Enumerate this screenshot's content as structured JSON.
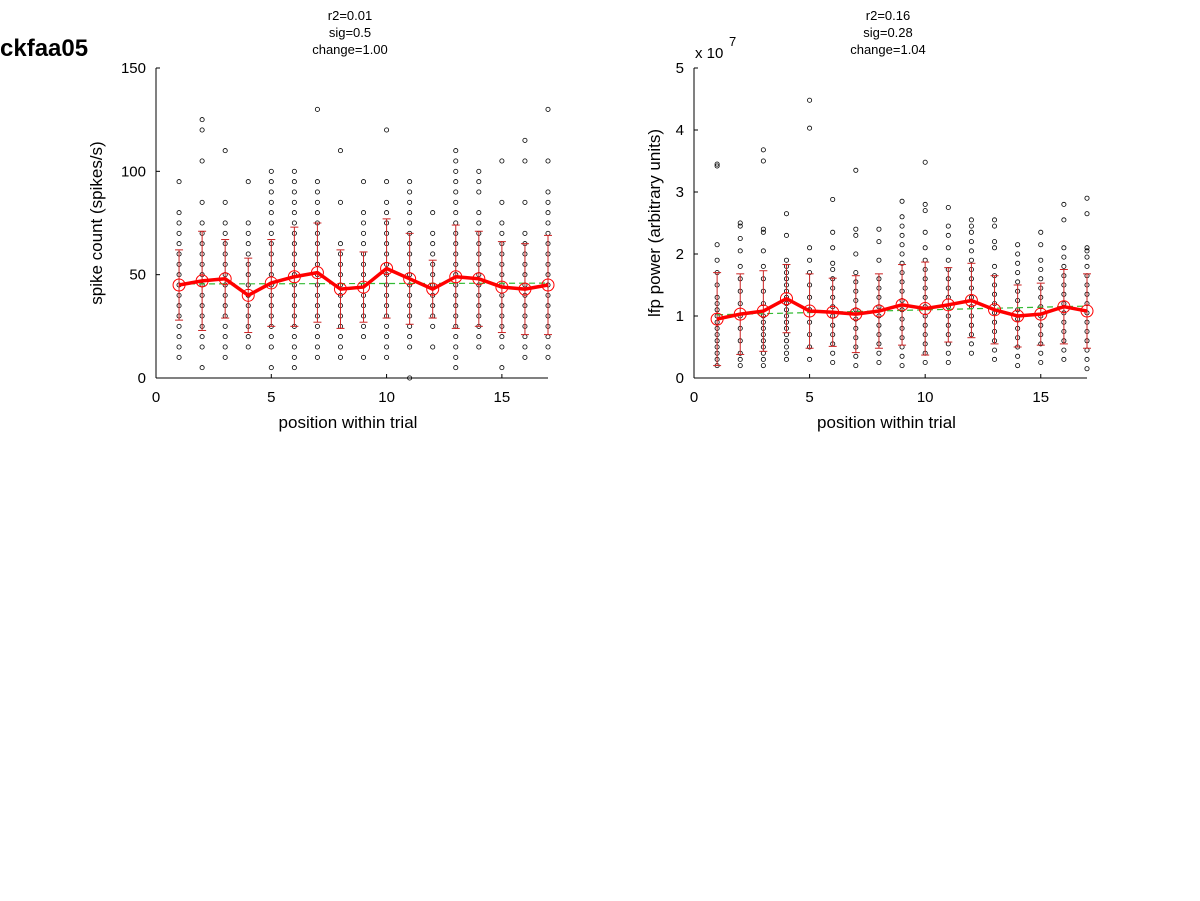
{
  "figure": {
    "title": "ckfaa05"
  },
  "colors": {
    "scatter": "#000000",
    "errorbar": "#cc2222",
    "mean_line": "#ff0000",
    "trend": "#33bb33"
  },
  "chart_data": [
    {
      "type": "scatter",
      "annotation": [
        "r2=0.01",
        "sig=0.5",
        "change=1.00"
      ],
      "xlabel": "position within trial",
      "ylabel": "spike count (spikes/s)",
      "xlim": [
        0,
        17
      ],
      "ylim": [
        0,
        150
      ],
      "xticks": [
        0,
        5,
        10,
        15
      ],
      "yticks": [
        0,
        50,
        100,
        150
      ],
      "exponent_label": "",
      "x": [
        1,
        2,
        3,
        4,
        5,
        6,
        7,
        8,
        9,
        10,
        11,
        12,
        13,
        14,
        15,
        16,
        17
      ],
      "mean": [
        45,
        47,
        48,
        40,
        46,
        49,
        51,
        43,
        44,
        53,
        48,
        43,
        49,
        48,
        44,
        43,
        45
      ],
      "std": [
        17,
        24,
        19,
        18,
        21,
        24,
        24,
        19,
        17,
        24,
        22,
        14,
        25,
        23,
        22,
        22,
        24
      ],
      "trend": [
        45.5,
        45.9
      ],
      "points": [
        [
          10,
          15,
          20,
          25,
          30,
          35,
          40,
          45,
          50,
          55,
          60,
          65,
          70,
          75,
          80,
          95
        ],
        [
          5,
          15,
          20,
          25,
          30,
          35,
          40,
          45,
          50,
          55,
          60,
          65,
          70,
          75,
          85,
          105,
          120,
          125
        ],
        [
          10,
          15,
          20,
          25,
          30,
          35,
          40,
          45,
          50,
          55,
          60,
          65,
          70,
          75,
          85,
          110
        ],
        [
          15,
          20,
          25,
          30,
          35,
          40,
          45,
          50,
          55,
          60,
          65,
          70,
          75,
          95
        ],
        [
          5,
          15,
          20,
          25,
          30,
          35,
          40,
          45,
          50,
          55,
          60,
          65,
          70,
          75,
          80,
          85,
          90,
          95,
          100
        ],
        [
          5,
          10,
          15,
          20,
          25,
          30,
          35,
          40,
          45,
          50,
          55,
          60,
          65,
          70,
          75,
          80,
          85,
          90,
          95,
          100
        ],
        [
          10,
          15,
          20,
          25,
          30,
          35,
          40,
          45,
          50,
          55,
          60,
          65,
          70,
          75,
          80,
          85,
          90,
          95,
          130
        ],
        [
          10,
          15,
          20,
          25,
          30,
          35,
          40,
          45,
          50,
          55,
          60,
          65,
          85,
          110
        ],
        [
          10,
          20,
          25,
          30,
          35,
          40,
          45,
          50,
          55,
          60,
          65,
          70,
          75,
          80,
          95
        ],
        [
          10,
          15,
          20,
          25,
          30,
          35,
          40,
          45,
          50,
          55,
          60,
          65,
          70,
          75,
          80,
          85,
          95,
          120
        ],
        [
          0,
          15,
          20,
          25,
          30,
          35,
          40,
          45,
          50,
          55,
          60,
          65,
          70,
          75,
          80,
          85,
          90,
          95
        ],
        [
          15,
          25,
          30,
          35,
          40,
          45,
          50,
          55,
          60,
          65,
          70,
          80
        ],
        [
          5,
          10,
          15,
          20,
          25,
          30,
          35,
          40,
          45,
          50,
          55,
          60,
          65,
          70,
          75,
          80,
          85,
          90,
          95,
          100,
          105,
          110
        ],
        [
          15,
          20,
          25,
          30,
          35,
          40,
          45,
          50,
          55,
          60,
          65,
          70,
          75,
          80,
          90,
          95,
          100
        ],
        [
          5,
          15,
          20,
          25,
          30,
          35,
          40,
          45,
          50,
          55,
          60,
          65,
          70,
          75,
          85,
          105
        ],
        [
          10,
          15,
          20,
          25,
          30,
          35,
          40,
          45,
          50,
          55,
          60,
          65,
          70,
          85,
          105,
          115
        ],
        [
          10,
          15,
          20,
          25,
          30,
          35,
          40,
          45,
          50,
          55,
          60,
          65,
          70,
          75,
          80,
          85,
          90,
          105,
          130
        ]
      ]
    },
    {
      "type": "scatter",
      "annotation": [
        "r2=0.16",
        "sig=0.28",
        "change=1.04"
      ],
      "xlabel": "position within trial",
      "ylabel": "lfp power (arbitrary units)",
      "xlim": [
        0,
        17
      ],
      "ylim": [
        0,
        5
      ],
      "xticks": [
        0,
        5,
        10,
        15
      ],
      "yticks": [
        0,
        1,
        2,
        3,
        4,
        5
      ],
      "exponent_label": "x 10",
      "exponent_power": "7",
      "x": [
        1,
        2,
        3,
        4,
        5,
        6,
        7,
        8,
        9,
        10,
        11,
        12,
        13,
        14,
        15,
        16,
        17
      ],
      "mean": [
        0.95,
        1.03,
        1.08,
        1.28,
        1.08,
        1.06,
        1.03,
        1.08,
        1.18,
        1.12,
        1.18,
        1.25,
        1.1,
        1.0,
        1.03,
        1.15,
        1.08
      ],
      "std": [
        0.75,
        0.65,
        0.65,
        0.55,
        0.6,
        0.55,
        0.62,
        0.6,
        0.65,
        0.75,
        0.6,
        0.6,
        0.55,
        0.5,
        0.5,
        0.6,
        0.6
      ],
      "trend": [
        1.02,
        1.16
      ],
      "points": [
        [
          0.2,
          0.3,
          0.4,
          0.5,
          0.6,
          0.7,
          0.8,
          0.9,
          1.0,
          1.1,
          1.2,
          1.3,
          1.5,
          1.7,
          1.9,
          2.15,
          3.42,
          3.45
        ],
        [
          0.2,
          0.3,
          0.4,
          0.6,
          0.8,
          1.0,
          1.2,
          1.4,
          1.6,
          1.8,
          2.05,
          2.25,
          2.45,
          2.5
        ],
        [
          0.2,
          0.3,
          0.4,
          0.5,
          0.6,
          0.7,
          0.8,
          0.9,
          1.0,
          1.2,
          1.4,
          1.6,
          1.8,
          2.05,
          2.35,
          2.4,
          3.5,
          3.68
        ],
        [
          0.3,
          0.4,
          0.5,
          0.6,
          0.7,
          0.8,
          0.9,
          1.0,
          1.1,
          1.2,
          1.3,
          1.4,
          1.5,
          1.6,
          1.7,
          1.8,
          1.9,
          2.3,
          2.65
        ],
        [
          0.3,
          0.5,
          0.7,
          0.9,
          1.1,
          1.3,
          1.5,
          1.7,
          1.9,
          2.1,
          4.03,
          4.48
        ],
        [
          0.25,
          0.4,
          0.55,
          0.7,
          0.85,
          1.0,
          1.15,
          1.3,
          1.45,
          1.6,
          1.75,
          1.85,
          2.1,
          2.35,
          2.88
        ],
        [
          0.2,
          0.35,
          0.5,
          0.65,
          0.8,
          0.95,
          1.1,
          1.25,
          1.4,
          1.55,
          1.7,
          2.0,
          2.3,
          2.4,
          3.35
        ],
        [
          0.25,
          0.4,
          0.55,
          0.7,
          0.85,
          1.0,
          1.15,
          1.3,
          1.45,
          1.6,
          1.9,
          2.2,
          2.4
        ],
        [
          0.2,
          0.35,
          0.5,
          0.65,
          0.8,
          0.95,
          1.1,
          1.25,
          1.4,
          1.55,
          1.7,
          1.85,
          2.0,
          2.15,
          2.3,
          2.45,
          2.6,
          2.85
        ],
        [
          0.25,
          0.4,
          0.55,
          0.7,
          0.85,
          1.0,
          1.15,
          1.3,
          1.45,
          1.6,
          1.75,
          1.9,
          2.1,
          2.35,
          2.7,
          2.8,
          3.48
        ],
        [
          0.25,
          0.4,
          0.55,
          0.7,
          0.85,
          1.0,
          1.15,
          1.3,
          1.45,
          1.6,
          1.75,
          1.9,
          2.1,
          2.3,
          2.45,
          2.75
        ],
        [
          0.4,
          0.55,
          0.7,
          0.85,
          1.0,
          1.15,
          1.3,
          1.45,
          1.6,
          1.75,
          1.9,
          2.05,
          2.2,
          2.35,
          2.45,
          2.55
        ],
        [
          0.3,
          0.45,
          0.6,
          0.75,
          0.9,
          1.05,
          1.2,
          1.35,
          1.5,
          1.65,
          1.8,
          2.1,
          2.2,
          2.45,
          2.55
        ],
        [
          0.2,
          0.35,
          0.5,
          0.65,
          0.8,
          0.95,
          1.1,
          1.25,
          1.4,
          1.55,
          1.7,
          1.85,
          2.0,
          2.15
        ],
        [
          0.25,
          0.4,
          0.55,
          0.7,
          0.85,
          1.0,
          1.15,
          1.3,
          1.45,
          1.6,
          1.75,
          1.9,
          2.15,
          2.35
        ],
        [
          0.3,
          0.45,
          0.6,
          0.75,
          0.9,
          1.05,
          1.2,
          1.35,
          1.5,
          1.65,
          1.8,
          1.95,
          2.1,
          2.55,
          2.8
        ],
        [
          0.15,
          0.3,
          0.45,
          0.6,
          0.75,
          0.9,
          1.05,
          1.2,
          1.35,
          1.5,
          1.65,
          1.8,
          1.95,
          2.05,
          2.1,
          2.65,
          2.9
        ]
      ]
    }
  ]
}
